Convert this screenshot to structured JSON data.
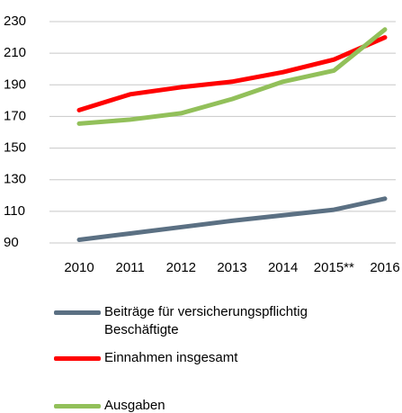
{
  "chart_data": {
    "type": "line",
    "categories": [
      "2010",
      "2011",
      "2012",
      "2013",
      "2014",
      "2015**",
      "2016"
    ],
    "series": [
      {
        "name": "Beiträge für versicherungspflichtig Beschäftigte",
        "color": "#5b7083",
        "values": [
          92,
          96,
          100,
          104,
          107.5,
          111,
          118
        ]
      },
      {
        "name": "Einnahmen insgesamt",
        "color": "#ff0000",
        "values": [
          174,
          184,
          188.5,
          192,
          198,
          206,
          220
        ]
      },
      {
        "name": "Ausgaben",
        "color": "#92c05a",
        "values": [
          165.5,
          168,
          172,
          181,
          192,
          199,
          225
        ]
      }
    ],
    "ylim": [
      90,
      230
    ],
    "yticks": [
      90,
      110,
      130,
      150,
      170,
      190,
      210,
      230
    ],
    "grid": true
  }
}
